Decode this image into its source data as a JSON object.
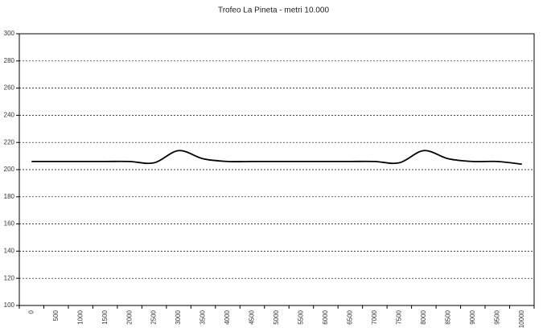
{
  "chart_data": {
    "type": "line",
    "title": "Trofeo La Pineta - metri 10.000",
    "categories": [
      0,
      500,
      1000,
      1500,
      2000,
      2500,
      3000,
      3500,
      4000,
      4500,
      5000,
      5500,
      6000,
      6500,
      7000,
      7500,
      8000,
      8500,
      9000,
      9500,
      10000
    ],
    "values": [
      206,
      206,
      206,
      206,
      206,
      205,
      214,
      208,
      206,
      206,
      206,
      206,
      206,
      206,
      206,
      205,
      214,
      208,
      206,
      206,
      204
    ],
    "color": "#000000",
    "ylim": [
      100,
      300
    ],
    "yticks": [
      100,
      120,
      140,
      160,
      180,
      200,
      220,
      240,
      260,
      280,
      300
    ],
    "grid": true
  }
}
